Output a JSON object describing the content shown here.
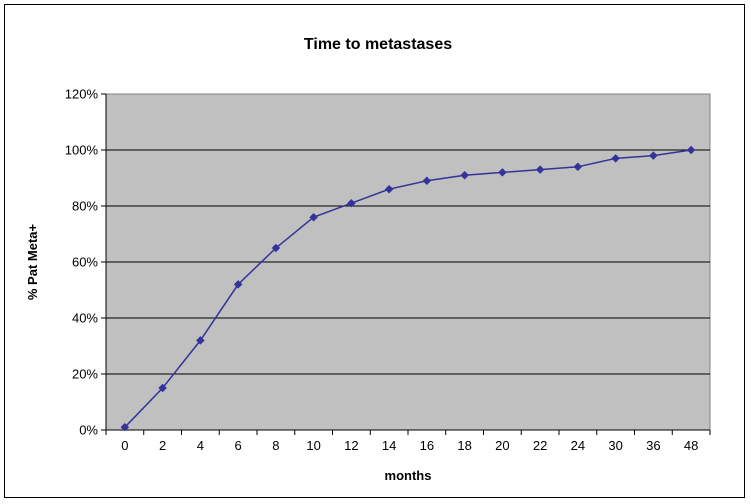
{
  "chart_data": {
    "type": "line",
    "title": "Time to metastases",
    "xlabel": "months",
    "ylabel": "% Pat Meta+",
    "categories": [
      "0",
      "2",
      "4",
      "6",
      "8",
      "10",
      "12",
      "14",
      "16",
      "18",
      "20",
      "22",
      "24",
      "30",
      "36",
      "48"
    ],
    "series": [
      {
        "values": [
          1,
          15,
          32,
          52,
          65,
          76,
          81,
          86,
          89,
          91,
          92,
          93,
          94,
          97,
          98,
          100
        ]
      }
    ],
    "ylim": [
      0,
      120
    ],
    "yticks": [
      "0%",
      "20%",
      "40%",
      "60%",
      "80%",
      "100%",
      "120%"
    ],
    "grid": true,
    "legend": "none",
    "colors": {
      "plot_background": "#c0c0c0",
      "series": "#333399",
      "gridline": "#000000"
    }
  }
}
